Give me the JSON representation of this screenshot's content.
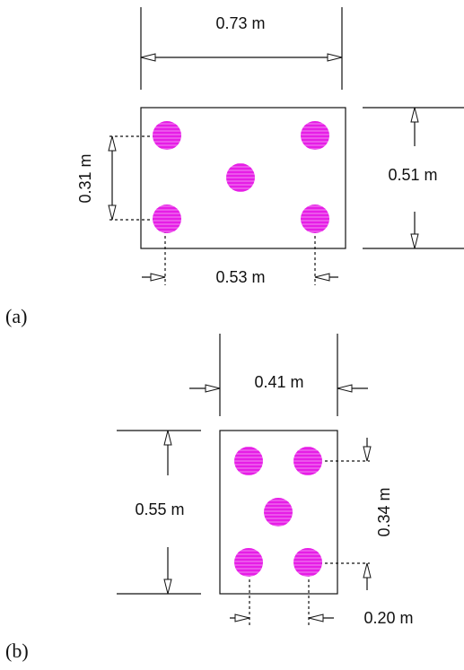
{
  "figure_a": {
    "caption": "(a)",
    "width_label": "0.73 m",
    "height_label": "0.51 m",
    "bar_spacing_vertical_label": "0.31 m",
    "bar_spacing_horizontal_label": "0.53 m",
    "bar_count": 5
  },
  "figure_b": {
    "caption": "(b)",
    "width_label": "0.41 m",
    "height_label": "0.55 m",
    "bar_spacing_vertical_label": "0.34 m",
    "bar_spacing_horizontal_label": "0.20 m",
    "bar_count": 5
  },
  "colors": {
    "bar": "#e61ee6",
    "line": "#111111"
  }
}
